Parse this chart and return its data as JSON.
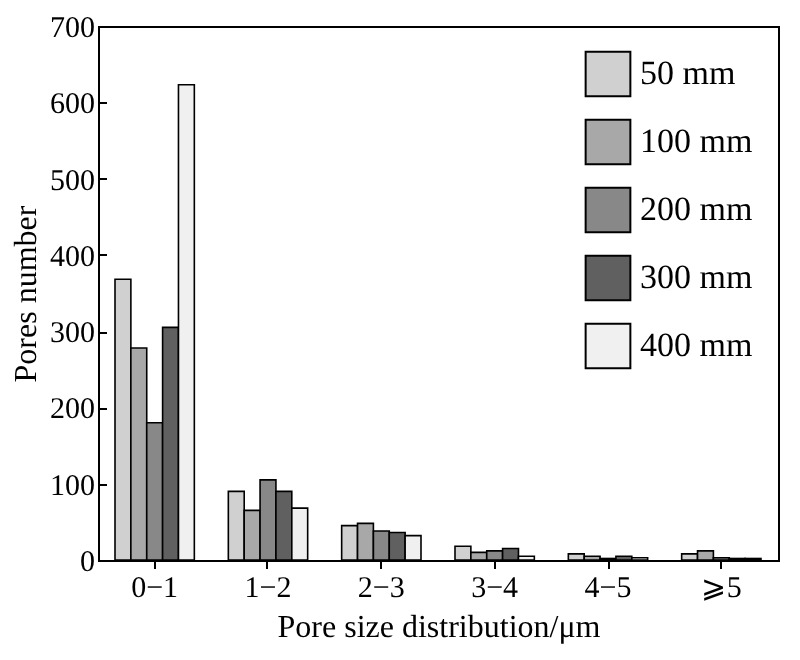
{
  "chart_data": {
    "type": "bar",
    "xlabel": "Pore size distribution/μm",
    "ylabel": "Pores number",
    "categories": [
      "0−1",
      "1−2",
      "2−3",
      "3−4",
      "4−5",
      "⩾5"
    ],
    "series": [
      {
        "name": "50 mm",
        "color": "#d0d0d0",
        "values": [
          368,
          90,
          45,
          18,
          8,
          8
        ]
      },
      {
        "name": "100 mm",
        "color": "#a8a8a8",
        "values": [
          278,
          65,
          48,
          10,
          5,
          12
        ]
      },
      {
        "name": "200 mm",
        "color": "#888888",
        "values": [
          180,
          105,
          38,
          12,
          2,
          3
        ]
      },
      {
        "name": "300 mm",
        "color": "#606060",
        "values": [
          305,
          90,
          36,
          15,
          5,
          2
        ]
      },
      {
        "name": "400 mm",
        "color": "#f0f0f0",
        "values": [
          623,
          68,
          32,
          5,
          3,
          2
        ]
      }
    ],
    "ylim": [
      0,
      700
    ],
    "yticks": [
      0,
      100,
      200,
      300,
      400,
      500,
      600,
      700
    ],
    "grid": false,
    "legend": "top right"
  }
}
